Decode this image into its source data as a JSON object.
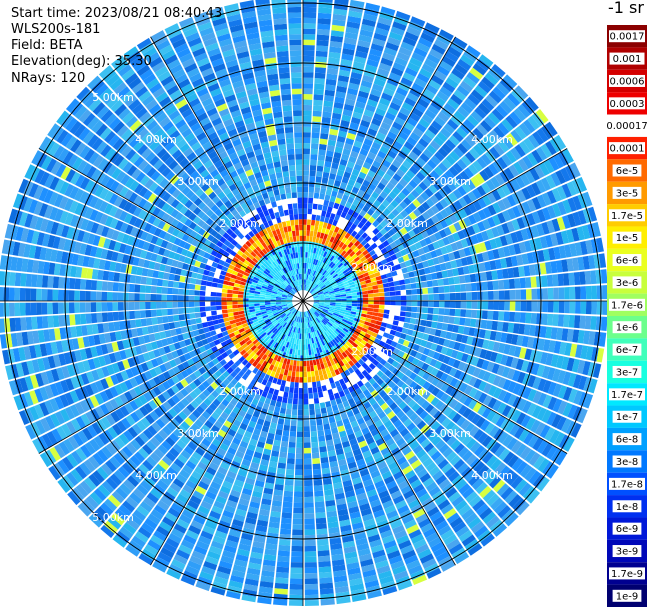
{
  "header": {
    "start_time": "Start time: 2023/08/21 08:40:43",
    "instrument": "WLS200s-181",
    "field": "Field: BETA",
    "elevation": "Elevation(deg): 35.30",
    "nrays": "NRays: 120"
  },
  "colorbar": {
    "title": "-1 sr",
    "labels": [
      "0.0017",
      "0.001",
      "0.0006",
      "0.0003",
      "0.00017",
      "0.0001",
      "6e-5",
      "3e-5",
      "1.7e-5",
      "1e-5",
      "6e-6",
      "3e-6",
      "1.7e-6",
      "1e-6",
      "6e-7",
      "3e-7",
      "1.7e-7",
      "1e-7",
      "6e-8",
      "3e-8",
      "1.7e-8",
      "1e-8",
      "6e-9",
      "3e-9",
      "1.7e-9",
      "1e-9"
    ],
    "colors": [
      "#8b0000",
      "#b00000",
      "#d40000",
      "#ee0000",
      "#ffffff",
      "#ff2000",
      "#ff6a00",
      "#ff9a00",
      "#ffcc00",
      "#ffee00",
      "#eaff20",
      "#c8ff3c",
      "#a0ff60",
      "#6cff8c",
      "#40ffbb",
      "#18ffe0",
      "#00e8ff",
      "#00c8ff",
      "#00a0ff",
      "#0078ff",
      "#0050ff",
      "#0030f0",
      "#0018d8",
      "#0008b8",
      "#000090",
      "#000070"
    ]
  },
  "chart_data": {
    "type": "heatmap",
    "projection": "polar",
    "n_rays": 120,
    "range_rings": [
      {
        "label": "2.00km",
        "distance_km": 2.0
      },
      {
        "label": "3.00km",
        "distance_km": 3.0
      },
      {
        "label": "4.00km",
        "distance_km": 4.0
      },
      {
        "label": "5.00km",
        "distance_km": 5.0
      }
    ],
    "field": "BETA",
    "scale": "log"
  }
}
